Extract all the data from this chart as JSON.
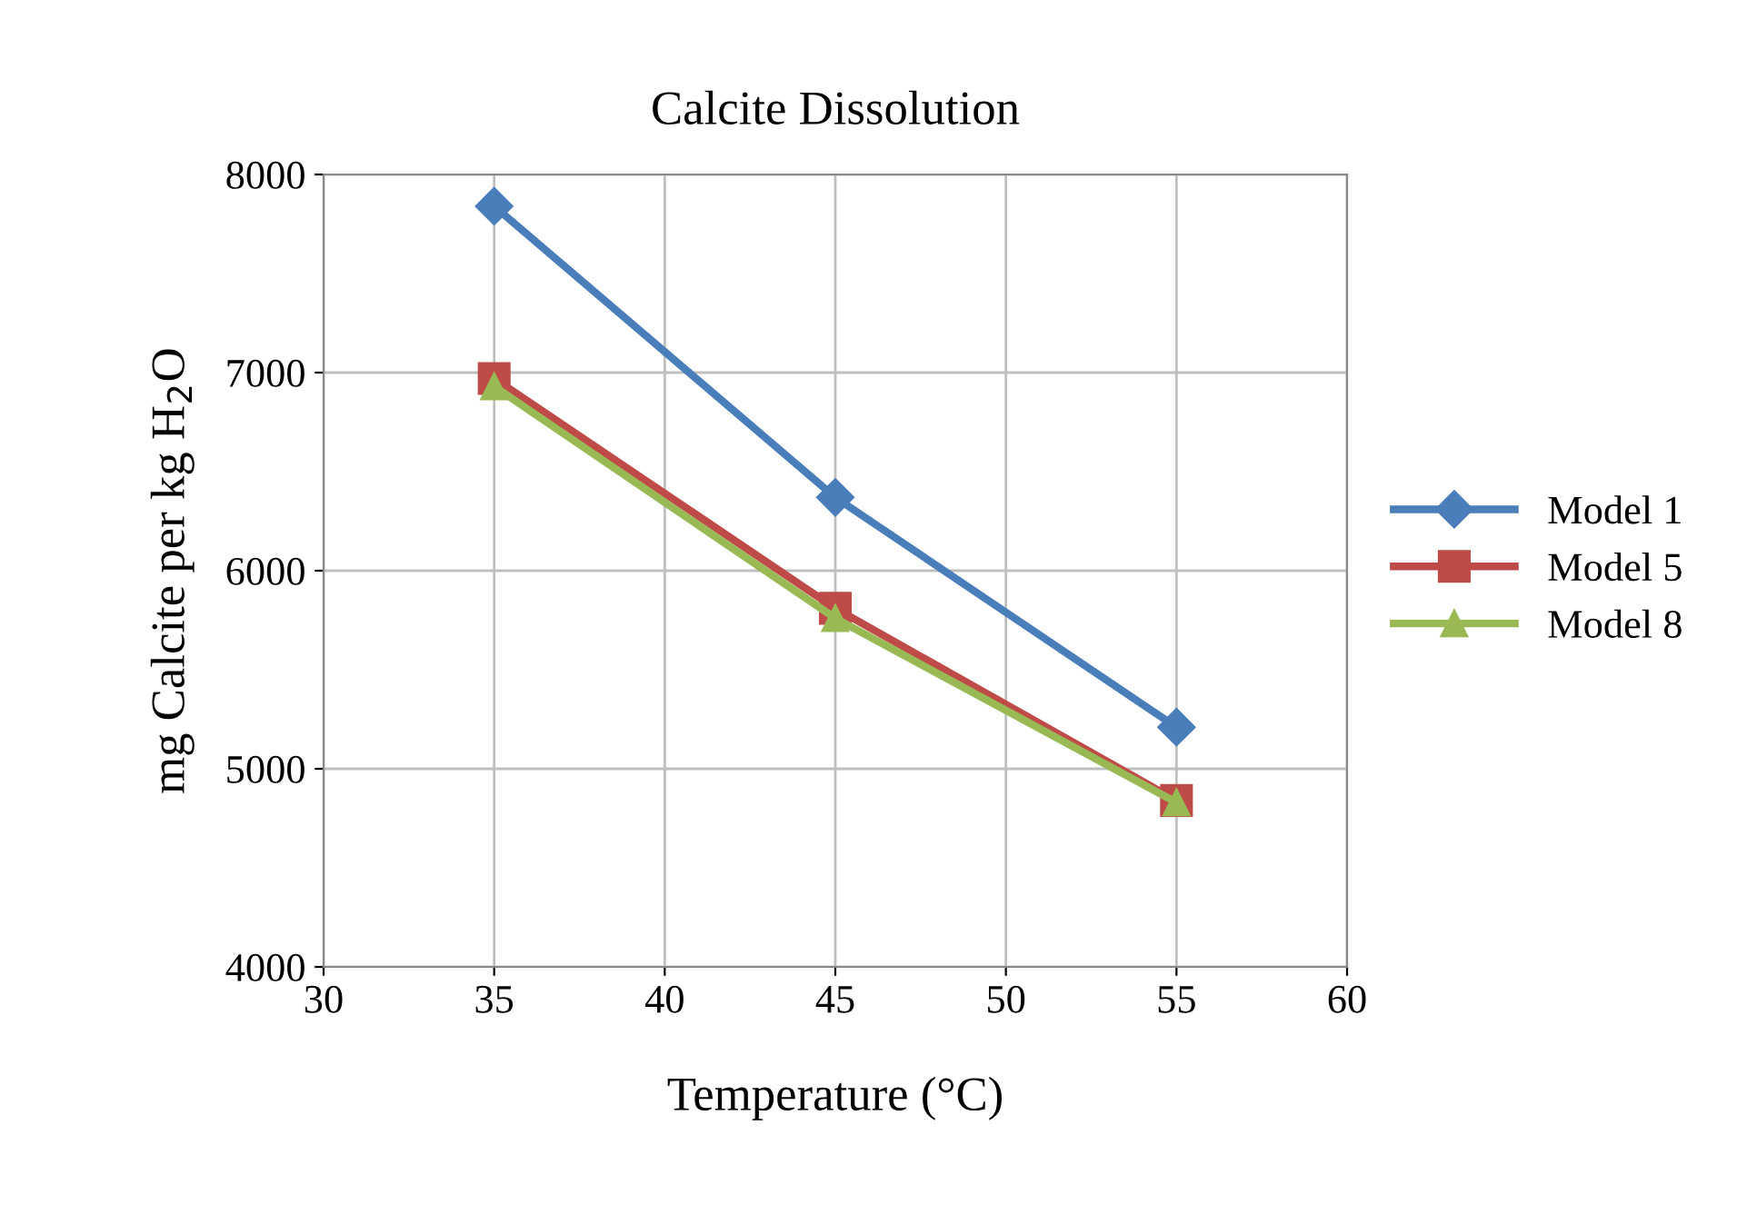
{
  "chart_data": {
    "type": "line",
    "title": "Calcite Dissolution",
    "xlabel": "Temperature (°C)",
    "ylabel": "mg Calcite per kg H$_{2}$O",
    "x": [
      35,
      45,
      55
    ],
    "series": [
      {
        "name": "Model 1",
        "color": "#4a7ebb",
        "marker": "diamond",
        "values": [
          7840,
          6370,
          5210
        ]
      },
      {
        "name": "Model 5",
        "color": "#be4b48",
        "marker": "square",
        "values": [
          6970,
          5810,
          4840
        ]
      },
      {
        "name": "Model 8",
        "color": "#98b954",
        "marker": "triangle",
        "values": [
          6930,
          5760,
          4830
        ]
      }
    ],
    "xlim": [
      30,
      60
    ],
    "xticks": [
      30,
      35,
      40,
      45,
      50,
      55,
      60
    ],
    "ylim": [
      4000,
      8000
    ],
    "yticks": [
      4000,
      5000,
      6000,
      7000,
      8000
    ],
    "grid": true,
    "legend": "right",
    "line_style": "solid"
  }
}
